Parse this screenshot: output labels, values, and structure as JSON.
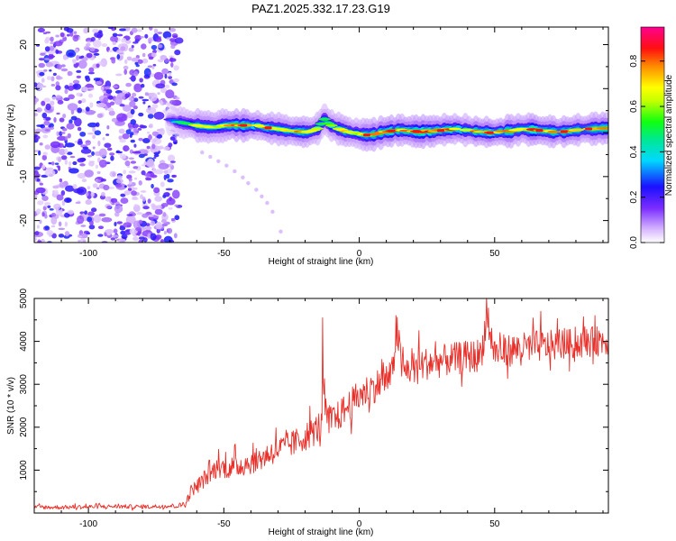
{
  "figure_title": "PAZ1.2025.332.17.23.G19",
  "chart_data": [
    {
      "type": "heatmap",
      "title": "PAZ1.2025.332.17.23.G19",
      "xlabel": "Height of straight line (km)",
      "ylabel": "Frequency (Hz)",
      "xlim": [
        -120,
        92
      ],
      "ylim": [
        -25,
        24
      ],
      "x_ticks": [
        -100,
        -50,
        0,
        50
      ],
      "x_tick_labels": [
        "-100",
        "-50",
        "0",
        "50"
      ],
      "y_ticks": [
        -20,
        -10,
        0,
        10,
        20
      ],
      "y_tick_labels": [
        "-20",
        "-10",
        "0",
        "10",
        "20"
      ],
      "colorbar": {
        "label": "Normalized spectral amplitude",
        "range": [
          0,
          0.95
        ],
        "ticks": [
          0.0,
          0.2,
          0.4,
          0.6,
          0.8
        ],
        "tick_labels": [
          "0.0",
          "0.2",
          "0.4",
          "0.6",
          "0.8"
        ],
        "colormap": "rainbow (white-purple-blue-cyan-green-yellow-red-pink)"
      },
      "noise_region_x": [
        -120,
        -68
      ],
      "signal_ridge": {
        "x": [
          -70,
          -67,
          -63,
          -60,
          -57,
          -53,
          -50,
          -46,
          -42,
          -38,
          -34,
          -30,
          -26,
          -22,
          -18,
          -15,
          -13,
          -11,
          -8,
          -5,
          -2,
          0,
          3,
          6,
          10,
          14,
          18,
          22,
          26,
          30,
          35,
          40,
          45,
          50,
          55,
          60,
          65,
          70,
          75,
          80,
          85,
          92
        ],
        "frequency": [
          3.0,
          2.4,
          2.0,
          1.6,
          1.4,
          1.3,
          1.6,
          1.8,
          1.7,
          1.6,
          1.2,
          0.8,
          0.4,
          0.2,
          0.2,
          1.0,
          3.2,
          2.0,
          1.0,
          0.3,
          -0.2,
          -0.4,
          -0.6,
          -0.3,
          0.2,
          0.6,
          0.4,
          0.2,
          0.3,
          0.6,
          0.8,
          0.5,
          0.2,
          -0.1,
          0.4,
          0.8,
          0.6,
          0.3,
          0.2,
          0.6,
          0.8,
          1.0
        ],
        "amplitude": [
          0.25,
          0.5,
          0.65,
          0.75,
          0.8,
          0.78,
          0.85,
          0.9,
          0.92,
          0.88,
          0.85,
          0.8,
          0.78,
          0.85,
          0.9,
          0.7,
          0.55,
          0.75,
          0.8,
          0.82,
          0.78,
          0.74,
          0.8,
          0.86,
          0.9,
          0.88,
          0.85,
          0.9,
          0.92,
          0.88,
          0.9,
          0.85,
          0.9,
          0.92,
          0.88,
          0.9,
          0.93,
          0.9,
          0.92,
          0.9,
          0.88,
          0.85
        ]
      },
      "faint_trail": {
        "x": [
          -58,
          -55,
          -52,
          -49,
          -46,
          -43,
          -41,
          -38,
          -36,
          -34,
          -32,
          -29
        ],
        "frequency": [
          -4.5,
          -5.5,
          -6.5,
          -7.5,
          -8.8,
          -10.2,
          -11.5,
          -13.0,
          -14.5,
          -16.0,
          -18.0,
          -22.5
        ]
      }
    },
    {
      "type": "line",
      "xlabel": "Height of straight line (km)",
      "ylabel": "SNR (10 * v/v)",
      "xlim": [
        -120,
        92
      ],
      "ylim": [
        0,
        5000
      ],
      "x_ticks": [
        -100,
        -50,
        0,
        50
      ],
      "x_tick_labels": [
        "-100",
        "-50",
        "0",
        "50"
      ],
      "y_ticks": [
        1000,
        2000,
        3000,
        4000,
        5000
      ],
      "y_tick_labels": [
        "1000",
        "2000",
        "3000",
        "4000",
        "5000"
      ],
      "line_color": "#e8302a",
      "series": [
        {
          "name": "SNR",
          "x": [
            -120,
            -110,
            -100,
            -90,
            -80,
            -70,
            -66,
            -64,
            -62,
            -60,
            -56,
            -52,
            -48,
            -44,
            -40,
            -36,
            -32,
            -28,
            -24,
            -20,
            -16,
            -14,
            -13,
            -12,
            -10,
            -8,
            -5,
            -2,
            0,
            4,
            8,
            12,
            14,
            16,
            20,
            25,
            30,
            35,
            40,
            45,
            47,
            50,
            55,
            60,
            65,
            70,
            75,
            80,
            85,
            92
          ],
          "values": [
            130,
            130,
            140,
            150,
            140,
            160,
            170,
            220,
            520,
            600,
            850,
            1050,
            1020,
            1080,
            1150,
            1250,
            1400,
            1500,
            1600,
            1750,
            1900,
            2050,
            2900,
            2100,
            2150,
            2200,
            2400,
            2550,
            2700,
            2850,
            3000,
            3150,
            4200,
            3250,
            3350,
            3450,
            3500,
            3550,
            3600,
            3650,
            4500,
            3700,
            3750,
            3800,
            3850,
            3850,
            3900,
            3900,
            3950,
            4000
          ],
          "noise_amplitude": [
            60,
            60,
            60,
            60,
            60,
            60,
            80,
            120,
            180,
            220,
            280,
            300,
            320,
            340,
            340,
            360,
            380,
            380,
            400,
            420,
            450,
            450,
            500,
            450,
            450,
            450,
            460,
            480,
            480,
            480,
            480,
            480,
            500,
            480,
            480,
            480,
            480,
            480,
            480,
            500,
            500,
            500,
            480,
            460,
            460,
            460,
            440,
            440,
            440,
            440
          ]
        }
      ],
      "spikes": [
        {
          "x": -13.5,
          "value": 4550
        },
        {
          "x": 13.5,
          "value": 4600
        },
        {
          "x": 47,
          "value": 5050
        },
        {
          "x": 22,
          "value": 4250
        },
        {
          "x": 67,
          "value": 4700
        },
        {
          "x": 87,
          "value": 4600
        }
      ]
    }
  ]
}
